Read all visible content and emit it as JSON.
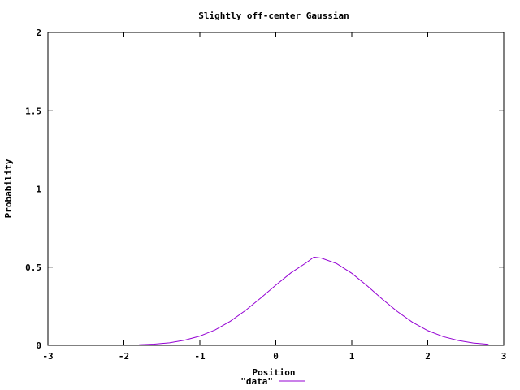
{
  "chart_data": {
    "type": "line",
    "title": "Slightly off-center Gaussian",
    "xlabel": "Position",
    "ylabel": "Probability",
    "xlim": [
      -3,
      3
    ],
    "ylim": [
      0,
      2
    ],
    "x_ticks": [
      -3,
      -2,
      -1,
      0,
      1,
      2,
      3
    ],
    "x_tick_labels": [
      "-3",
      "-2",
      "-1",
      "0",
      "1",
      "2",
      "3"
    ],
    "y_ticks": [
      0,
      0.5,
      1,
      1.5,
      2
    ],
    "y_tick_labels": [
      "0",
      "0.5",
      "1",
      "1.5",
      "2"
    ],
    "grid": false,
    "legend_position": "bottom-center",
    "series": [
      {
        "name": "\"data\"",
        "color": "#9400d3",
        "x": [
          -1.8,
          -1.6,
          -1.4,
          -1.2,
          -1.0,
          -0.8,
          -0.6,
          -0.4,
          -0.2,
          0.0,
          0.2,
          0.4,
          0.5,
          0.6,
          0.8,
          1.0,
          1.2,
          1.4,
          1.6,
          1.8,
          2.0,
          2.2,
          2.4,
          2.6,
          2.8
        ],
        "y": [
          0.004,
          0.008,
          0.016,
          0.033,
          0.059,
          0.098,
          0.154,
          0.223,
          0.302,
          0.385,
          0.464,
          0.528,
          0.564,
          0.558,
          0.523,
          0.461,
          0.382,
          0.296,
          0.216,
          0.147,
          0.094,
          0.056,
          0.031,
          0.015,
          0.006
        ]
      }
    ]
  }
}
